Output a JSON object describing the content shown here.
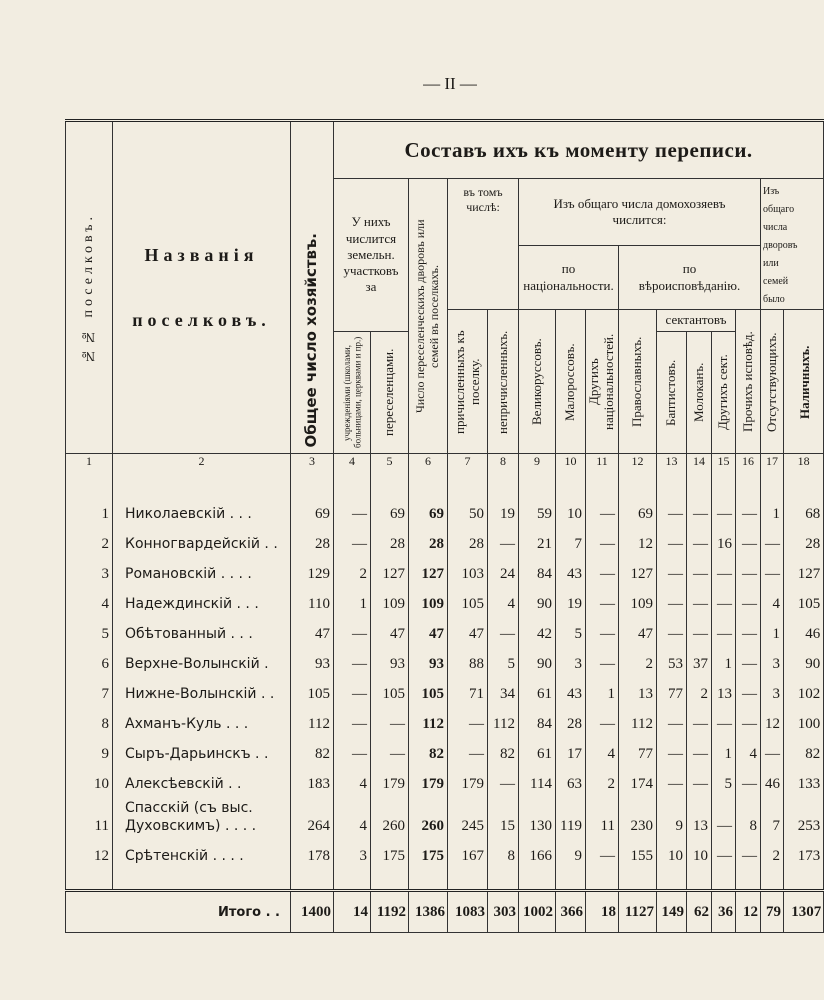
{
  "page_number": "— II —",
  "table": {
    "title": "Составъ ихъ къ моменту переписи.",
    "headers": {
      "col1": "№№ поселковъ.",
      "col2": "Названія поселковъ.",
      "col3": "Общее число хозяйствъ.",
      "group_4_5": "У нихъ числится земельн. участковъ за",
      "col4": "учрежденіями (школами, больницами, церквами и пр.)",
      "col5": "переселенцами.",
      "col6": "Число переселенческихъ дворовъ или семей въ поселкахъ.",
      "group_7_8": "въ томъ числѣ:",
      "col7": "причисленныхъ къ поселку.",
      "col8": "непричисленныхъ.",
      "group_9_16": "Изъ общаго числа домохозяевъ числится:",
      "group_9_11": "по національности.",
      "col9": "Великоруссовъ.",
      "col10": "Малороссовъ.",
      "col11": "Другихъ національностей.",
      "group_12_16": "по вѣроисповѣданію.",
      "col12": "Православныхъ.",
      "group_13_15": "сектантовъ",
      "col13": "Баптистовъ.",
      "col14": "Молоканъ.",
      "col15": "Другихъ сект.",
      "col16": "Прочихъ исповѣд.",
      "group_17_18": "Изъ общаго числа дворовъ или семей было",
      "col17": "Отсутствующихъ.",
      "col18": "Наличныхъ."
    },
    "column_numbers": [
      "1",
      "2",
      "3",
      "4",
      "5",
      "6",
      "7",
      "8",
      "9",
      "10",
      "11",
      "12",
      "13",
      "14",
      "15",
      "16",
      "17",
      "18"
    ],
    "rows": [
      [
        "1",
        "Николаевскій . . .",
        "69",
        "—",
        "69",
        "69",
        "50",
        "19",
        "59",
        "10",
        "—",
        "69",
        "—",
        "—",
        "—",
        "—",
        "1",
        "68"
      ],
      [
        "2",
        "Конногвардейскій . .",
        "28",
        "—",
        "28",
        "28",
        "28",
        "—",
        "21",
        "7",
        "—",
        "12",
        "—",
        "—",
        "16",
        "—",
        "—",
        "28"
      ],
      [
        "3",
        "Романовскій . . . .",
        "129",
        "2",
        "127",
        "127",
        "103",
        "24",
        "84",
        "43",
        "—",
        "127",
        "—",
        "—",
        "—",
        "—",
        "—",
        "127"
      ],
      [
        "4",
        "Надеждинскій . . .",
        "110",
        "1",
        "109",
        "109",
        "105",
        "4",
        "90",
        "19",
        "—",
        "109",
        "—",
        "—",
        "—",
        "—",
        "4",
        "105"
      ],
      [
        "5",
        "Обѣтованный . . .",
        "47",
        "—",
        "47",
        "47",
        "47",
        "—",
        "42",
        "5",
        "—",
        "47",
        "—",
        "—",
        "—",
        "—",
        "1",
        "46"
      ],
      [
        "6",
        "Верхне-Волынскій .",
        "93",
        "—",
        "93",
        "93",
        "88",
        "5",
        "90",
        "3",
        "—",
        "2",
        "53",
        "37",
        "1",
        "—",
        "3",
        "90"
      ],
      [
        "7",
        "Нижне-Волынскій . .",
        "105",
        "—",
        "105",
        "105",
        "71",
        "34",
        "61",
        "43",
        "1",
        "13",
        "77",
        "2",
        "13",
        "—",
        "3",
        "102"
      ],
      [
        "8",
        "Ахманъ-Куль . . .",
        "112",
        "—",
        "—",
        "112",
        "—",
        "112",
        "84",
        "28",
        "—",
        "112",
        "—",
        "—",
        "—",
        "—",
        "12",
        "100"
      ],
      [
        "9",
        "Сыръ-Дарьинскъ . .",
        "82",
        "—",
        "—",
        "82",
        "—",
        "82",
        "61",
        "17",
        "4",
        "77",
        "—",
        "—",
        "1",
        "4",
        "—",
        "82"
      ],
      [
        "10",
        "Алексѣевскій . .",
        "183",
        "4",
        "179",
        "179",
        "179",
        "—",
        "114",
        "63",
        "2",
        "174",
        "—",
        "—",
        "5",
        "—",
        "46",
        "133"
      ],
      [
        "11",
        "Спасскій (съ выс. Духовскимъ) . . . .",
        "264",
        "4",
        "260",
        "260",
        "245",
        "15",
        "130",
        "119",
        "11",
        "230",
        "9",
        "13",
        "—",
        "8",
        "7",
        "253"
      ],
      [
        "12",
        "Срѣтенскій . . . .",
        "178",
        "3",
        "175",
        "175",
        "167",
        "8",
        "166",
        "9",
        "—",
        "155",
        "10",
        "10",
        "—",
        "—",
        "2",
        "173"
      ]
    ],
    "total": {
      "label": "Итого . .",
      "values": [
        "1400",
        "14",
        "1192",
        "1386",
        "1083",
        "303",
        "1002",
        "366",
        "18",
        "1127",
        "149",
        "62",
        "36",
        "12",
        "79",
        "1307"
      ]
    }
  }
}
